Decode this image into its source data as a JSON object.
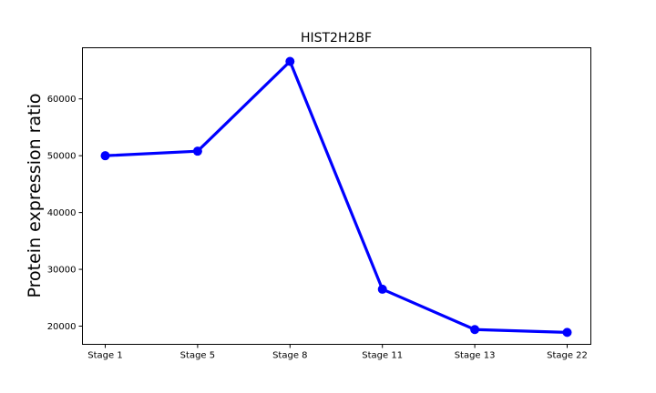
{
  "chart_data": {
    "type": "line",
    "title": "HIST2H2BF",
    "xlabel": "",
    "ylabel": "Protein expression ratio",
    "categories": [
      "Stage 1",
      "Stage 5",
      "Stage 8",
      "Stage 11",
      "Stage 13",
      "Stage 22"
    ],
    "series": [
      {
        "values": [
          50000,
          50800,
          66600,
          26500,
          19400,
          18900
        ],
        "color": "#0000ff"
      }
    ],
    "ylim": [
      16800,
      69000
    ],
    "yticks": [
      20000,
      30000,
      40000,
      50000,
      60000
    ],
    "ytick_labels": [
      "20000",
      "30000",
      "40000",
      "50000",
      "60000"
    ],
    "grid": false,
    "legend": "none"
  }
}
